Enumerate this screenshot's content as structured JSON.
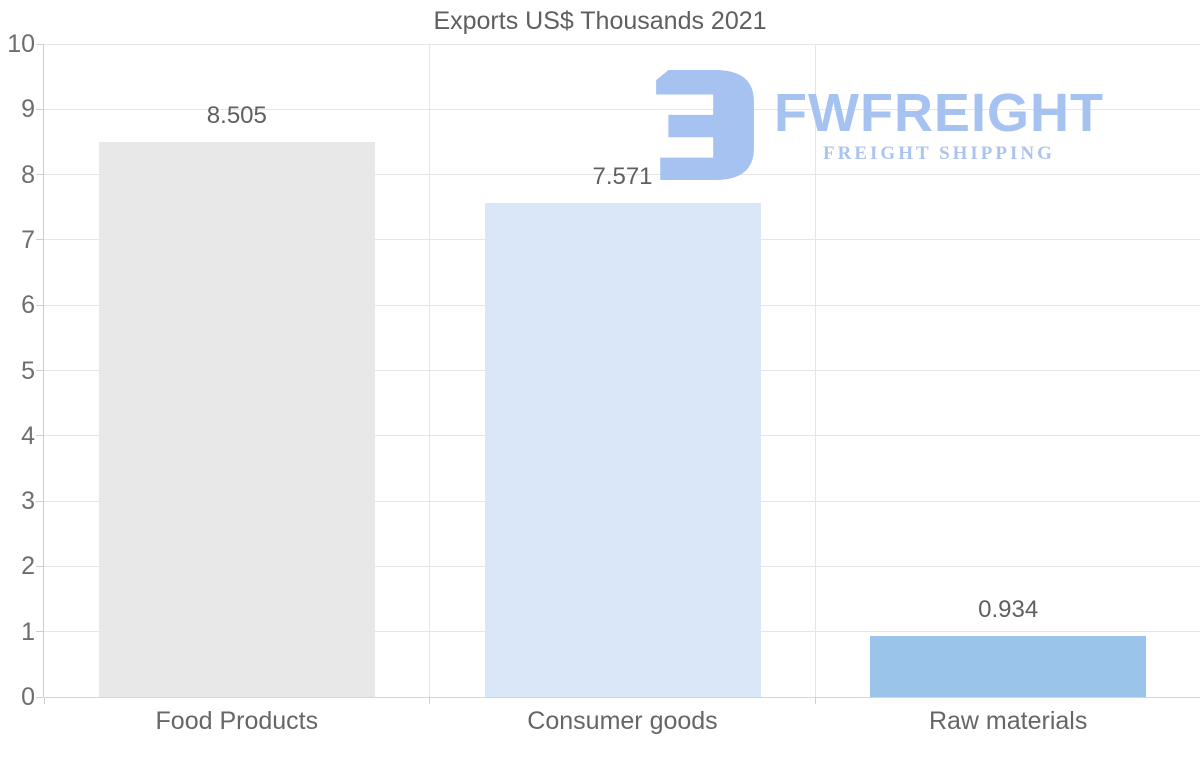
{
  "title": "Exports US$ Thousands 2021",
  "logo": {
    "brand": "FWFREIGHT",
    "tagline": "FREIGHT SHIPPING",
    "color": "#a6c2f0"
  },
  "chart_data": {
    "type": "bar",
    "title": "Exports US$ Thousands 2021",
    "categories": [
      "Food Products",
      "Consumer goods",
      "Raw materials"
    ],
    "values": [
      8.505,
      7.571,
      0.934
    ],
    "value_labels": [
      "8.505",
      "7.571",
      "0.934"
    ],
    "bar_colors": [
      "#e8e8e8",
      "#d9e7f8",
      "#9ac4e9"
    ],
    "xlabel": "",
    "ylabel": "",
    "ylim": [
      0,
      10
    ],
    "ytick_interval": 1,
    "ytick_labels": [
      "0",
      "1",
      "2",
      "3",
      "4",
      "5",
      "6",
      "7",
      "8",
      "9",
      "10"
    ],
    "grid": true,
    "legend_position": "none"
  },
  "colors": {
    "background": "#ffffff",
    "text": "#606060",
    "grid": "#e5e5e5",
    "axis": "#cfcfcf"
  }
}
